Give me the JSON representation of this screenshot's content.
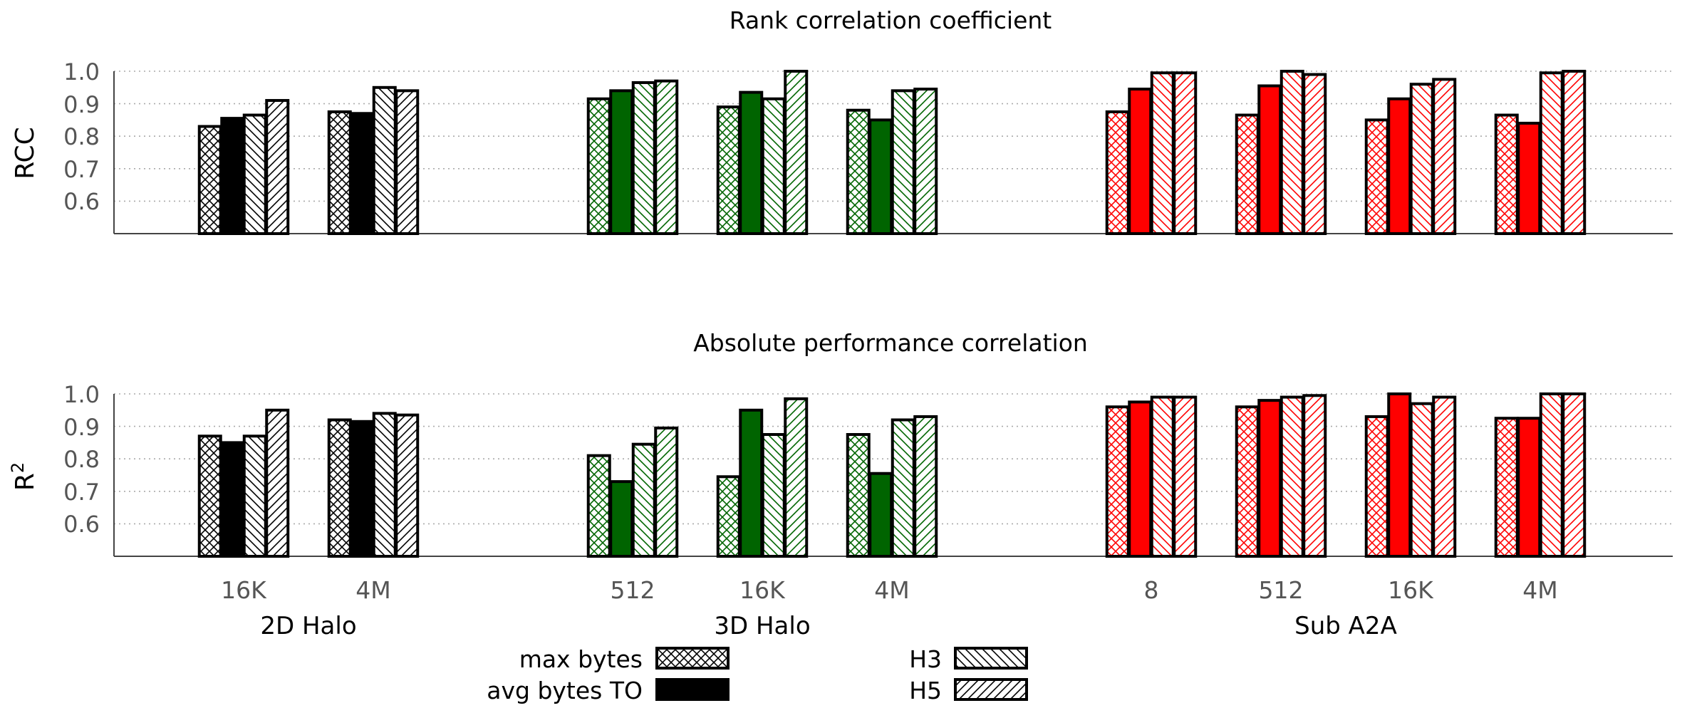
{
  "colors": {
    "2D Halo": "#000000",
    "3D Halo": "#006400",
    "Sub A2A": "#ff0000"
  },
  "legend": {
    "max_bytes": "max bytes",
    "avg_bytes_to": "avg bytes TO",
    "h3": "H3",
    "h5": "H5"
  },
  "x_tick_labels": [
    "16K",
    "4M",
    "512",
    "16K",
    "4M",
    "8",
    "512",
    "16K",
    "4M"
  ],
  "group_labels": [
    "2D Halo",
    "3D Halo",
    "Sub A2A"
  ],
  "chart_data": [
    {
      "type": "bar",
      "title": "Rank correlation coefficient",
      "ylabel": "RCC",
      "ylim": [
        0.5,
        1.0
      ],
      "yticks": [
        "0.6",
        "0.7",
        "0.8",
        "0.9",
        "1.0"
      ],
      "grid": true,
      "series": [
        {
          "name": "max bytes",
          "pattern": "cross"
        },
        {
          "name": "avg bytes TO",
          "pattern": "solid"
        },
        {
          "name": "H3",
          "pattern": "diag-down"
        },
        {
          "name": "H5",
          "pattern": "diag-up"
        }
      ],
      "categories": [
        {
          "group": "2D Halo",
          "label": "16K",
          "values": [
            0.83,
            0.855,
            0.865,
            0.91
          ]
        },
        {
          "group": "2D Halo",
          "label": "4M",
          "values": [
            0.875,
            0.87,
            0.95,
            0.94
          ]
        },
        {
          "group": "3D Halo",
          "label": "512",
          "values": [
            0.915,
            0.94,
            0.965,
            0.97
          ]
        },
        {
          "group": "3D Halo",
          "label": "16K",
          "values": [
            0.89,
            0.935,
            0.915,
            1.0
          ]
        },
        {
          "group": "3D Halo",
          "label": "4M",
          "values": [
            0.88,
            0.85,
            0.94,
            0.945
          ]
        },
        {
          "group": "Sub A2A",
          "label": "8",
          "values": [
            0.875,
            0.945,
            0.995,
            0.995
          ]
        },
        {
          "group": "Sub A2A",
          "label": "512",
          "values": [
            0.865,
            0.955,
            1.0,
            0.99
          ]
        },
        {
          "group": "Sub A2A",
          "label": "16K",
          "values": [
            0.85,
            0.915,
            0.96,
            0.975
          ]
        },
        {
          "group": "Sub A2A",
          "label": "4M",
          "values": [
            0.865,
            0.84,
            0.995,
            1.0
          ]
        }
      ]
    },
    {
      "type": "bar",
      "title": "Absolute performance correlation",
      "ylabel": "R",
      "ylabel_sup": "2",
      "ylim": [
        0.5,
        1.0
      ],
      "yticks": [
        "0.6",
        "0.7",
        "0.8",
        "0.9",
        "1.0"
      ],
      "grid": true,
      "series": [
        {
          "name": "max bytes",
          "pattern": "cross"
        },
        {
          "name": "avg bytes TO",
          "pattern": "solid"
        },
        {
          "name": "H3",
          "pattern": "diag-down"
        },
        {
          "name": "H5",
          "pattern": "diag-up"
        }
      ],
      "categories": [
        {
          "group": "2D Halo",
          "label": "16K",
          "values": [
            0.87,
            0.85,
            0.87,
            0.95
          ]
        },
        {
          "group": "2D Halo",
          "label": "4M",
          "values": [
            0.92,
            0.915,
            0.94,
            0.935
          ]
        },
        {
          "group": "3D Halo",
          "label": "512",
          "values": [
            0.81,
            0.73,
            0.845,
            0.895
          ]
        },
        {
          "group": "3D Halo",
          "label": "16K",
          "values": [
            0.745,
            0.95,
            0.875,
            0.985
          ]
        },
        {
          "group": "3D Halo",
          "label": "4M",
          "values": [
            0.875,
            0.755,
            0.92,
            0.93
          ]
        },
        {
          "group": "Sub A2A",
          "label": "8",
          "values": [
            0.96,
            0.975,
            0.99,
            0.99
          ]
        },
        {
          "group": "Sub A2A",
          "label": "512",
          "values": [
            0.96,
            0.98,
            0.99,
            0.995
          ]
        },
        {
          "group": "Sub A2A",
          "label": "16K",
          "values": [
            0.93,
            1.0,
            0.97,
            0.99
          ]
        },
        {
          "group": "Sub A2A",
          "label": "4M",
          "values": [
            0.925,
            0.925,
            1.0,
            1.0
          ]
        }
      ]
    }
  ]
}
